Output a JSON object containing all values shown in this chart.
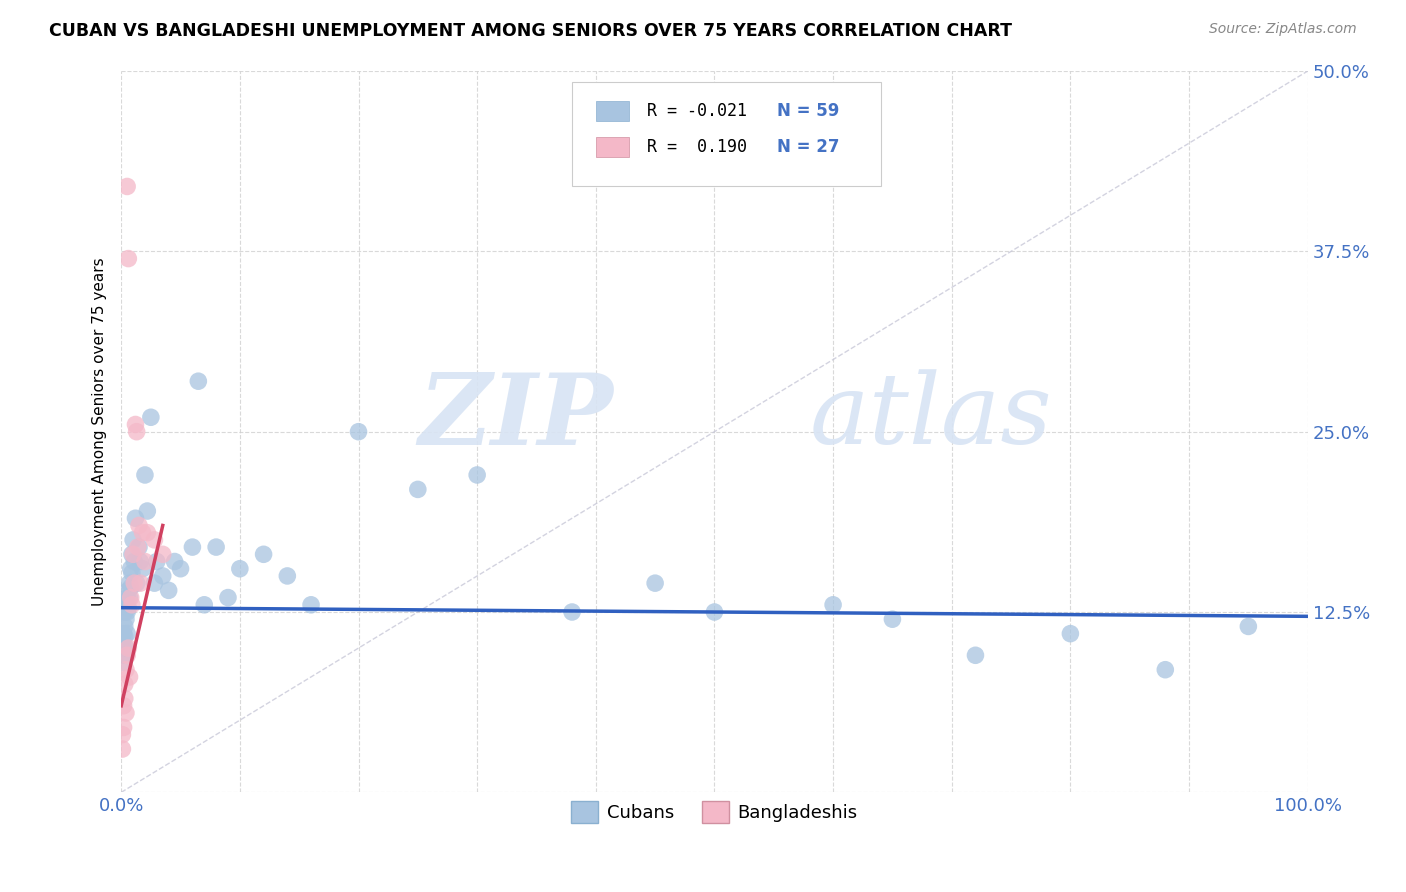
{
  "title": "CUBAN VS BANGLADESHI UNEMPLOYMENT AMONG SENIORS OVER 75 YEARS CORRELATION CHART",
  "source": "Source: ZipAtlas.com",
  "ylabel": "Unemployment Among Seniors over 75 years",
  "ytick_labels": [
    "",
    "12.5%",
    "25.0%",
    "37.5%",
    "50.0%"
  ],
  "ytick_values": [
    0.0,
    0.125,
    0.25,
    0.375,
    0.5
  ],
  "legend_cubans_r": "-0.021",
  "legend_cubans_n": "59",
  "legend_bangladeshis_r": "0.190",
  "legend_bangladeshis_n": "27",
  "cubans_color": "#a8c4e0",
  "bangladeshis_color": "#f4b8c8",
  "cubans_line_color": "#3060c0",
  "bangladeshis_line_color": "#d04060",
  "diagonal_color": "#c8c8d8",
  "watermark_zip": "ZIP",
  "watermark_atlas": "atlas",
  "cubans_x": [
    0.001,
    0.001,
    0.002,
    0.002,
    0.002,
    0.003,
    0.003,
    0.003,
    0.004,
    0.004,
    0.004,
    0.005,
    0.005,
    0.005,
    0.006,
    0.006,
    0.007,
    0.007,
    0.008,
    0.008,
    0.009,
    0.009,
    0.01,
    0.011,
    0.012,
    0.013,
    0.015,
    0.016,
    0.018,
    0.02,
    0.022,
    0.025,
    0.028,
    0.03,
    0.035,
    0.04,
    0.045,
    0.05,
    0.06,
    0.065,
    0.07,
    0.08,
    0.09,
    0.1,
    0.12,
    0.14,
    0.16,
    0.2,
    0.25,
    0.3,
    0.38,
    0.45,
    0.5,
    0.6,
    0.65,
    0.72,
    0.8,
    0.88,
    0.95
  ],
  "cubans_y": [
    0.105,
    0.095,
    0.11,
    0.1,
    0.09,
    0.125,
    0.115,
    0.108,
    0.13,
    0.12,
    0.1,
    0.135,
    0.125,
    0.11,
    0.14,
    0.128,
    0.145,
    0.135,
    0.155,
    0.142,
    0.165,
    0.152,
    0.175,
    0.16,
    0.19,
    0.145,
    0.17,
    0.16,
    0.155,
    0.22,
    0.195,
    0.26,
    0.145,
    0.16,
    0.15,
    0.14,
    0.16,
    0.155,
    0.17,
    0.285,
    0.13,
    0.17,
    0.135,
    0.155,
    0.165,
    0.15,
    0.13,
    0.25,
    0.21,
    0.22,
    0.125,
    0.145,
    0.125,
    0.13,
    0.12,
    0.095,
    0.11,
    0.085,
    0.115
  ],
  "bangladeshis_x": [
    0.001,
    0.001,
    0.002,
    0.002,
    0.003,
    0.003,
    0.004,
    0.004,
    0.005,
    0.005,
    0.006,
    0.006,
    0.007,
    0.008,
    0.009,
    0.01,
    0.011,
    0.012,
    0.013,
    0.014,
    0.015,
    0.016,
    0.018,
    0.02,
    0.022,
    0.028,
    0.035
  ],
  "bangladeshis_y": [
    0.04,
    0.03,
    0.06,
    0.045,
    0.075,
    0.065,
    0.085,
    0.055,
    0.095,
    0.42,
    0.1,
    0.37,
    0.08,
    0.135,
    0.13,
    0.165,
    0.145,
    0.255,
    0.25,
    0.17,
    0.185,
    0.145,
    0.18,
    0.16,
    0.18,
    0.175,
    0.165
  ],
  "xlim": [
    0.0,
    1.0
  ],
  "ylim": [
    0.0,
    0.5
  ]
}
